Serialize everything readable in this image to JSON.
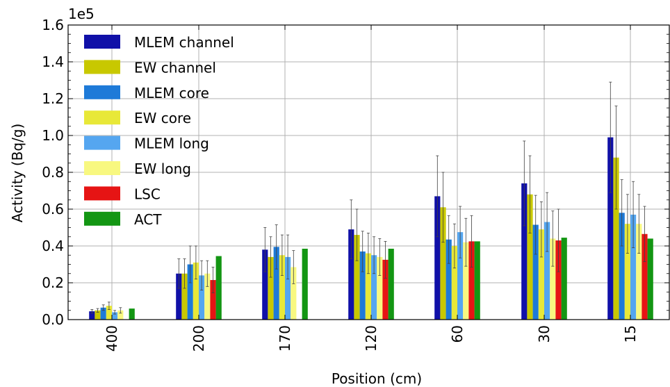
{
  "chart_data": {
    "type": "bar",
    "title": "",
    "xlabel": "Position (cm)",
    "ylabel": "Activity (Bq/g)",
    "y_multiplier_label": "1e5",
    "ylim": [
      0,
      1.6
    ],
    "yticks": [
      "0.0",
      "0.2",
      "0.4",
      "0.6",
      "0.8",
      "1.0",
      "1.2",
      "1.4",
      "1.6"
    ],
    "grid": true,
    "legend_position": "top-left",
    "categories": [
      "400",
      "200",
      "170",
      "120",
      "60",
      "30",
      "15"
    ],
    "series": [
      {
        "name": "MLEM channel",
        "color": "#1010a8",
        "values": [
          0.045,
          0.25,
          0.38,
          0.49,
          0.67,
          0.74,
          0.99
        ],
        "errors": [
          0.01,
          0.08,
          0.12,
          0.16,
          0.22,
          0.23,
          0.3
        ]
      },
      {
        "name": "EW channel",
        "color": "#c8c800",
        "values": [
          0.05,
          0.25,
          0.34,
          0.46,
          0.61,
          0.68,
          0.88
        ],
        "errors": [
          0.01,
          0.08,
          0.11,
          0.14,
          0.19,
          0.21,
          0.28
        ]
      },
      {
        "name": "MLEM core",
        "color": "#1e7ad8",
        "values": [
          0.065,
          0.3,
          0.395,
          0.37,
          0.435,
          0.515,
          0.58
        ],
        "errors": [
          0.015,
          0.1,
          0.12,
          0.11,
          0.13,
          0.16,
          0.18
        ]
      },
      {
        "name": "EW core",
        "color": "#e8e838",
        "values": [
          0.075,
          0.31,
          0.35,
          0.36,
          0.4,
          0.49,
          0.52
        ],
        "errors": [
          0.02,
          0.09,
          0.11,
          0.11,
          0.12,
          0.15,
          0.16
        ]
      },
      {
        "name": "MLEM long",
        "color": "#55a6f0",
        "values": [
          0.04,
          0.24,
          0.34,
          0.35,
          0.475,
          0.53,
          0.57
        ],
        "errors": [
          0.01,
          0.08,
          0.12,
          0.1,
          0.14,
          0.16,
          0.18
        ]
      },
      {
        "name": "EW long",
        "color": "#f8f880",
        "values": [
          0.05,
          0.25,
          0.285,
          0.34,
          0.42,
          0.44,
          0.52
        ],
        "errors": [
          0.015,
          0.07,
          0.09,
          0.1,
          0.13,
          0.15,
          0.16
        ]
      },
      {
        "name": "LSC",
        "color": "#e61414",
        "values": [
          0.0,
          0.215,
          0.0,
          0.325,
          0.425,
          0.43,
          0.465
        ],
        "errors": [
          0.0,
          0.07,
          0.0,
          0.1,
          0.14,
          0.17,
          0.15
        ]
      },
      {
        "name": "ACT",
        "color": "#139613",
        "values": [
          0.06,
          0.345,
          0.385,
          0.385,
          0.425,
          0.445,
          0.44
        ],
        "errors": [
          0.0,
          0.0,
          0.0,
          0.0,
          0.0,
          0.0,
          0.0
        ]
      }
    ]
  }
}
